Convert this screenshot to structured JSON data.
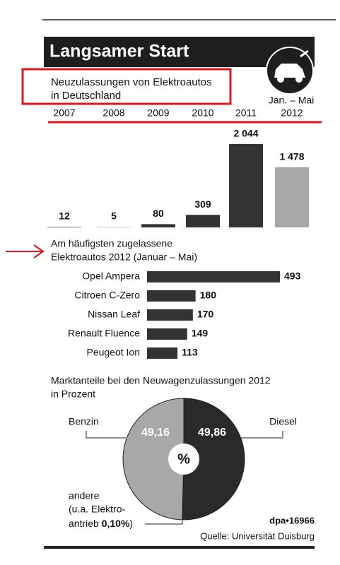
{
  "header": {
    "title": "Langsamer Start"
  },
  "chart_data": [
    {
      "type": "bar",
      "title_lines": [
        "Neuzulassungen von Elektroautos",
        "in Deutschland"
      ],
      "annotation": "Jan. – Mai",
      "categories": [
        "2007",
        "2008",
        "2009",
        "2010",
        "2011",
        "2012"
      ],
      "values": [
        12,
        5,
        80,
        309,
        2044,
        1478
      ],
      "value_labels": [
        "12",
        "5",
        "80",
        "309",
        "2 044",
        "1 478"
      ],
      "colors": [
        "#333333",
        "#333333",
        "#333333",
        "#333333",
        "#333333",
        "#a8a8a8"
      ]
    },
    {
      "type": "hbar",
      "title_lines": [
        "Am häufigsten zugelassene",
        "Elektroautos 2012 (Januar – Mai)"
      ],
      "categories": [
        "Opel Ampera",
        "Citroen C-Zero",
        "Nissan Leaf",
        "Renault Fluence",
        "Peugeot Ion"
      ],
      "values": [
        493,
        180,
        170,
        149,
        113
      ],
      "color": "#333333"
    },
    {
      "type": "pie",
      "title_lines": [
        "Marktanteile bei den Neuwagenzulassungen 2012",
        "in Prozent"
      ],
      "center_label": "%",
      "categories": [
        "Diesel",
        "andere",
        "Benzin"
      ],
      "values": [
        49.86,
        0.1,
        49.16
      ],
      "value_labels": [
        "49,86",
        "0,10%",
        "49,16"
      ],
      "colors": [
        "#2a2a2a",
        "#ffffff",
        "#a8a8a8"
      ],
      "other_note_lines": [
        "(u.a. Elektro-",
        "antrieb"
      ],
      "other_note_close": ")"
    }
  ],
  "footer": {
    "code": "dpa•16966",
    "source": "Quelle: Universität Duisburg"
  }
}
